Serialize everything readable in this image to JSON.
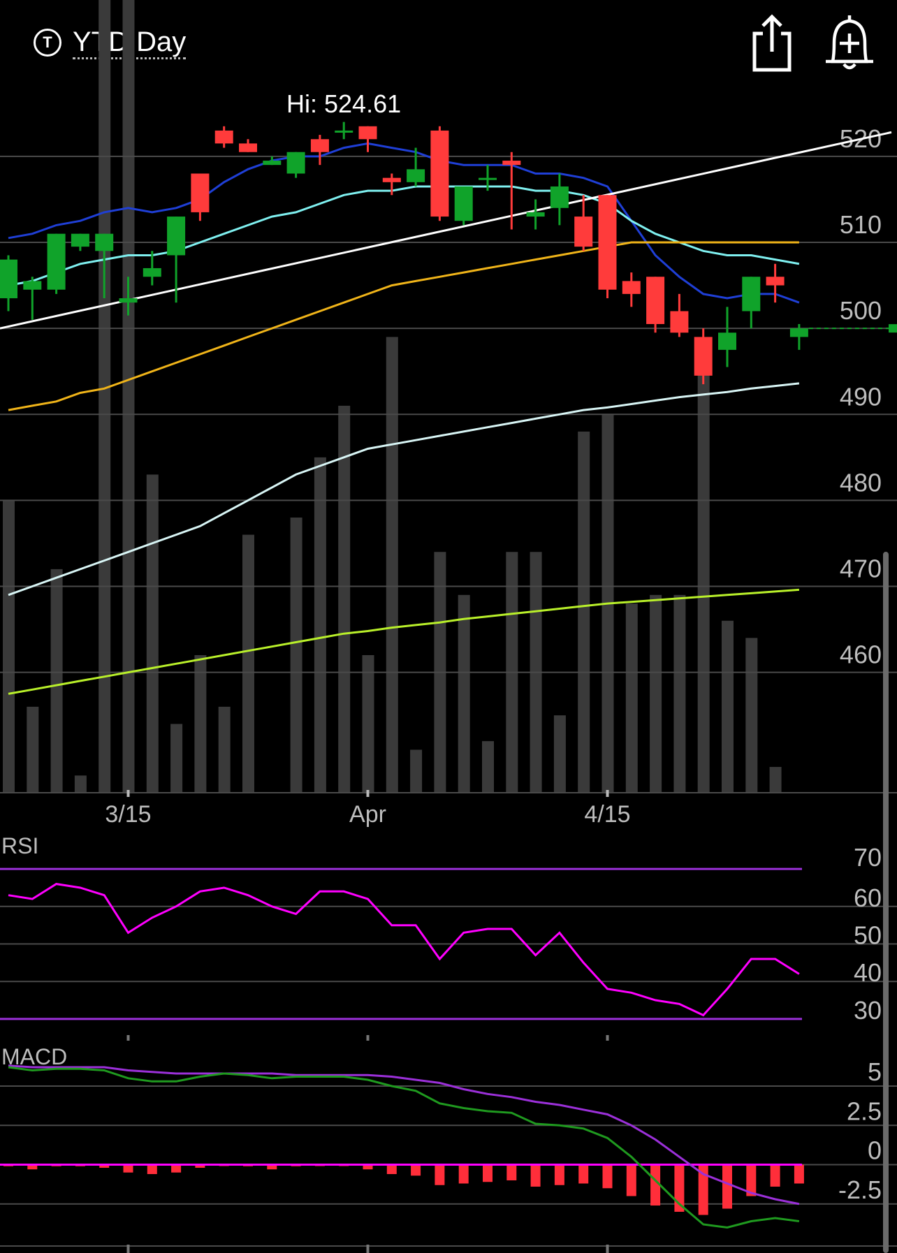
{
  "header": {
    "period_label": "YTD:Day",
    "timezone_icon_text": "T",
    "share_icon": "share-icon",
    "alert_icon": "bell-plus-icon"
  },
  "colors": {
    "up": "#10a32a",
    "down": "#ff3b3b",
    "volume": "#3a3a3a",
    "ma_dark_blue": "#1f3fd6",
    "ma_cyan": "#7ff0f0",
    "ma_orange": "#f0b419",
    "ma_pale": "#d8f5f5",
    "ma_lime": "#b9f02a",
    "trendline": "#ffffff",
    "rsi": "#ff00ff",
    "rsi_band": "#9b30d9",
    "macd": "#1f9a1f",
    "signal": "#9b30d9",
    "hist": "#ff2e3a"
  },
  "chart_data": [
    {
      "type": "candlestick",
      "high_label": "Hi: 524.61",
      "ylim": [
        446,
        526
      ],
      "yticks": [
        520,
        510,
        500,
        490,
        480,
        470,
        460
      ],
      "xticks": [
        {
          "index": 5,
          "label": "3/15"
        },
        {
          "index": 15,
          "label": "Apr"
        },
        {
          "index": 25,
          "label": "4/15"
        }
      ],
      "grid": true,
      "candles": [
        {
          "o": 503.5,
          "h": 508.5,
          "l": 502.0,
          "c": 508.0
        },
        {
          "o": 504.5,
          "h": 506.0,
          "l": 501.0,
          "c": 505.5
        },
        {
          "o": 504.5,
          "h": 511.0,
          "l": 504.0,
          "c": 511.0
        },
        {
          "o": 509.5,
          "h": 511.0,
          "l": 509.0,
          "c": 511.0
        },
        {
          "o": 509.0,
          "h": 511.0,
          "l": 503.5,
          "c": 511.0
        },
        {
          "o": 503.0,
          "h": 506.0,
          "l": 501.5,
          "c": 503.5
        },
        {
          "o": 506.0,
          "h": 509.0,
          "l": 505.0,
          "c": 507.0
        },
        {
          "o": 508.5,
          "h": 513.0,
          "l": 503.0,
          "c": 513.0
        },
        {
          "o": 518.0,
          "h": 518.0,
          "l": 512.5,
          "c": 513.5
        },
        {
          "o": 523.0,
          "h": 523.5,
          "l": 521.0,
          "c": 521.5
        },
        {
          "o": 521.5,
          "h": 522.0,
          "l": 520.5,
          "c": 520.5
        },
        {
          "o": 519.0,
          "h": 520.0,
          "l": 519.0,
          "c": 519.5
        },
        {
          "o": 518.0,
          "h": 520.5,
          "l": 517.5,
          "c": 520.5
        },
        {
          "o": 522.0,
          "h": 522.5,
          "l": 519.0,
          "c": 520.5
        },
        {
          "o": 523.0,
          "h": 524.0,
          "l": 522.0,
          "c": 523.0
        },
        {
          "o": 523.5,
          "h": 523.5,
          "l": 520.5,
          "c": 522.0
        },
        {
          "o": 517.5,
          "h": 518.0,
          "l": 515.5,
          "c": 517.0
        },
        {
          "o": 517.0,
          "h": 521.0,
          "l": 516.5,
          "c": 518.5
        },
        {
          "o": 523.0,
          "h": 523.5,
          "l": 512.5,
          "c": 513.0
        },
        {
          "o": 512.5,
          "h": 516.0,
          "l": 512.0,
          "c": 516.5
        },
        {
          "o": 517.5,
          "h": 519.0,
          "l": 516.0,
          "c": 517.5
        },
        {
          "o": 519.5,
          "h": 520.5,
          "l": 511.5,
          "c": 519.0
        },
        {
          "o": 513.0,
          "h": 515.0,
          "l": 511.5,
          "c": 513.5
        },
        {
          "o": 514.0,
          "h": 518.0,
          "l": 512.0,
          "c": 516.5
        },
        {
          "o": 513.0,
          "h": 515.5,
          "l": 509.0,
          "c": 509.5
        },
        {
          "o": 515.5,
          "h": 515.5,
          "l": 503.5,
          "c": 504.5
        },
        {
          "o": 505.5,
          "h": 506.5,
          "l": 502.5,
          "c": 504.0
        },
        {
          "o": 506.0,
          "h": 506.0,
          "l": 499.5,
          "c": 500.5
        },
        {
          "o": 502.0,
          "h": 504.0,
          "l": 499.0,
          "c": 499.5
        },
        {
          "o": 499.0,
          "h": 500.0,
          "l": 493.5,
          "c": 494.5
        },
        {
          "o": 497.5,
          "h": 502.5,
          "l": 495.5,
          "c": 499.5
        },
        {
          "o": 502.0,
          "h": 506.0,
          "l": 500.0,
          "c": 506.0
        },
        {
          "o": 506.0,
          "h": 507.5,
          "l": 503.0,
          "c": 505.0
        },
        {
          "o": 499.0,
          "h": 500.5,
          "l": 497.5,
          "c": 500.0
        }
      ],
      "last_price_line": 500,
      "volume": [
        480,
        456,
        472,
        448,
        545,
        544,
        483,
        454,
        462,
        456,
        476,
        425,
        478,
        485,
        491,
        462,
        499,
        451,
        474,
        469,
        452,
        474,
        474,
        455,
        488,
        490,
        468,
        469,
        469,
        498,
        466,
        464,
        449,
        442
      ],
      "overlays": [
        {
          "name": "ma-dark-blue",
          "x": [
            0,
            1,
            2,
            3,
            4,
            5,
            6,
            7,
            8,
            9,
            10,
            11,
            12,
            13,
            14,
            15,
            16,
            17,
            18,
            19,
            20,
            21,
            22,
            23,
            24,
            25,
            26,
            27,
            28,
            29,
            30,
            31,
            32,
            33
          ],
          "y": [
            510.5,
            511.0,
            512.0,
            512.5,
            513.5,
            514.0,
            513.5,
            514.0,
            515.0,
            517.0,
            518.5,
            519.5,
            520.0,
            520.0,
            521.0,
            521.5,
            521.0,
            520.5,
            519.5,
            519.0,
            519.0,
            519.0,
            518.0,
            518.0,
            517.5,
            516.5,
            512.5,
            508.5,
            506.0,
            504.0,
            503.5,
            504.0,
            504.0,
            503.0
          ]
        },
        {
          "name": "ma-cyan",
          "x": [
            0,
            1,
            2,
            3,
            4,
            5,
            6,
            7,
            8,
            9,
            10,
            11,
            12,
            13,
            14,
            15,
            16,
            17,
            18,
            19,
            20,
            21,
            22,
            23,
            24,
            25,
            26,
            27,
            28,
            29,
            30,
            31,
            32,
            33
          ],
          "y": [
            505.0,
            505.5,
            506.5,
            507.5,
            508.0,
            508.5,
            508.5,
            509.0,
            510.0,
            511.0,
            512.0,
            513.0,
            513.5,
            514.5,
            515.5,
            516.0,
            516.0,
            516.5,
            516.5,
            516.5,
            516.5,
            516.5,
            516.0,
            516.0,
            515.5,
            514.5,
            512.5,
            511.0,
            510.0,
            509.0,
            508.5,
            508.5,
            508.0,
            507.5
          ]
        },
        {
          "name": "ma-orange",
          "x": [
            0,
            1,
            2,
            3,
            4,
            5,
            6,
            7,
            8,
            9,
            10,
            11,
            12,
            13,
            14,
            15,
            16,
            17,
            18,
            19,
            20,
            21,
            22,
            23,
            24,
            25,
            26,
            27,
            28,
            29,
            30,
            31,
            32,
            33
          ],
          "y": [
            490.5,
            491.0,
            491.5,
            492.5,
            493.0,
            494.0,
            495.0,
            496.0,
            497.0,
            498.0,
            499.0,
            500.0,
            501.0,
            502.0,
            503.0,
            504.0,
            505.0,
            505.5,
            506.0,
            506.5,
            507.0,
            507.5,
            508.0,
            508.5,
            509.0,
            509.5,
            510.0,
            510.0,
            510.0,
            510.0,
            510.0,
            510.0,
            510.0,
            510.0
          ]
        },
        {
          "name": "ma-pale",
          "x": [
            0,
            1,
            2,
            3,
            4,
            5,
            6,
            7,
            8,
            9,
            10,
            11,
            12,
            13,
            14,
            15,
            16,
            17,
            18,
            19,
            20,
            21,
            22,
            23,
            24,
            25,
            26,
            27,
            28,
            29,
            30,
            31,
            32,
            33
          ],
          "y": [
            469.0,
            470.0,
            471.0,
            472.0,
            473.0,
            474.0,
            475.0,
            476.0,
            477.0,
            478.5,
            480.0,
            481.5,
            483.0,
            484.0,
            485.0,
            486.0,
            486.5,
            487.0,
            487.5,
            488.0,
            488.5,
            489.0,
            489.5,
            490.0,
            490.5,
            490.8,
            491.2,
            491.6,
            492.0,
            492.3,
            492.6,
            493.0,
            493.3,
            493.6
          ]
        },
        {
          "name": "ma-lime",
          "x": [
            0,
            1,
            2,
            3,
            4,
            5,
            6,
            7,
            8,
            9,
            10,
            11,
            12,
            13,
            14,
            15,
            16,
            17,
            18,
            19,
            20,
            21,
            22,
            23,
            24,
            25,
            26,
            27,
            28,
            29,
            30,
            31,
            32,
            33
          ],
          "y": [
            457.5,
            458.0,
            458.5,
            459.0,
            459.5,
            460.0,
            460.5,
            461.0,
            461.5,
            462.0,
            462.5,
            463.0,
            463.5,
            464.0,
            464.5,
            464.8,
            465.2,
            465.5,
            465.8,
            466.2,
            466.5,
            466.8,
            467.1,
            467.4,
            467.7,
            468.0,
            468.2,
            468.4,
            468.6,
            468.8,
            469.0,
            469.2,
            469.4,
            469.6
          ]
        },
        {
          "name": "trendline",
          "x": [
            0,
            37.2
          ],
          "y": [
            500,
            522.8
          ]
        }
      ]
    },
    {
      "type": "line",
      "title": "RSI",
      "ylim": [
        27,
        73
      ],
      "yticks": [
        70,
        60,
        50,
        40,
        30
      ],
      "bands": [
        70,
        30
      ],
      "x": [
        0,
        1,
        2,
        3,
        4,
        5,
        6,
        7,
        8,
        9,
        10,
        11,
        12,
        13,
        14,
        15,
        16,
        17,
        18,
        19,
        20,
        21,
        22,
        23,
        24,
        25,
        26,
        27,
        28,
        29,
        30,
        31,
        32,
        33
      ],
      "values": [
        63,
        62,
        66,
        65,
        63,
        53,
        57,
        60,
        64,
        65,
        63,
        60,
        58,
        64,
        64,
        62,
        55,
        55,
        46,
        53,
        54,
        54,
        47,
        53,
        45,
        38,
        37,
        35,
        34,
        31,
        38,
        46,
        46,
        42
      ]
    },
    {
      "type": "macd",
      "title": "MACD",
      "ylim": [
        -5,
        7
      ],
      "yticks": [
        5,
        2.5,
        0,
        -2.5
      ],
      "x": [
        0,
        1,
        2,
        3,
        4,
        5,
        6,
        7,
        8,
        9,
        10,
        11,
        12,
        13,
        14,
        15,
        16,
        17,
        18,
        19,
        20,
        21,
        22,
        23,
        24,
        25,
        26,
        27,
        28,
        29,
        30,
        31,
        32,
        33
      ],
      "macd": [
        6.2,
        6.0,
        6.1,
        6.1,
        6.0,
        5.5,
        5.3,
        5.3,
        5.6,
        5.8,
        5.7,
        5.5,
        5.6,
        5.6,
        5.6,
        5.4,
        5.0,
        4.7,
        3.9,
        3.6,
        3.4,
        3.3,
        2.6,
        2.5,
        2.3,
        1.7,
        0.5,
        -1.0,
        -2.5,
        -3.8,
        -4.0,
        -3.6,
        -3.4,
        -3.6
      ],
      "signal": [
        6.3,
        6.2,
        6.2,
        6.2,
        6.2,
        6.0,
        5.9,
        5.8,
        5.8,
        5.8,
        5.8,
        5.8,
        5.7,
        5.7,
        5.7,
        5.7,
        5.6,
        5.4,
        5.2,
        4.8,
        4.5,
        4.3,
        4.0,
        3.8,
        3.5,
        3.2,
        2.5,
        1.6,
        0.5,
        -0.6,
        -1.2,
        -1.8,
        -2.2,
        -2.5
      ],
      "histogram": [
        -0.1,
        -0.3,
        -0.1,
        -0.1,
        -0.2,
        -0.5,
        -0.6,
        -0.5,
        -0.2,
        0.0,
        -0.1,
        -0.3,
        -0.1,
        0.0,
        0.0,
        -0.3,
        -0.6,
        -0.7,
        -1.3,
        -1.2,
        -1.1,
        -1.0,
        -1.4,
        -1.3,
        -1.2,
        -1.5,
        -2.0,
        -2.6,
        -3.0,
        -3.2,
        -2.8,
        -2.0,
        -1.4,
        -1.2
      ]
    }
  ]
}
